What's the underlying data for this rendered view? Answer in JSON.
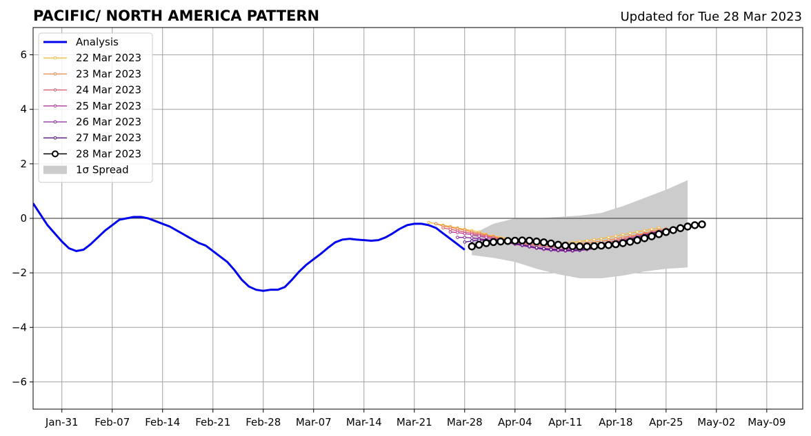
{
  "chart_data": {
    "type": "line",
    "title": "PACIFIC/ NORTH AMERICA PATTERN",
    "subtitle": "Updated for Tue 28 Mar 2023",
    "xlabel": "",
    "ylabel": "",
    "x_range": [
      "2023-01-27",
      "2023-05-14"
    ],
    "ylim": [
      -7,
      7
    ],
    "y_ticks": [
      -6,
      -4,
      -2,
      0,
      2,
      4,
      6
    ],
    "y_tick_labels": [
      "−6",
      "−4",
      "−2",
      "0",
      "2",
      "4",
      "6"
    ],
    "x_ticks": [
      "2023-01-31",
      "2023-02-07",
      "2023-02-14",
      "2023-02-21",
      "2023-02-28",
      "2023-03-07",
      "2023-03-14",
      "2023-03-21",
      "2023-03-28",
      "2023-04-04",
      "2023-04-11",
      "2023-04-18",
      "2023-04-25",
      "2023-05-02",
      "2023-05-09"
    ],
    "x_tick_labels": [
      "Jan-31",
      "Feb-07",
      "Feb-14",
      "Feb-21",
      "Feb-28",
      "Mar-07",
      "Mar-14",
      "Mar-21",
      "Mar-28",
      "Apr-04",
      "Apr-11",
      "Apr-18",
      "Apr-25",
      "May-02",
      "May-09"
    ],
    "grid": true,
    "zero_line": true,
    "legend_position": "upper-left",
    "spread": {
      "name": "1σ Spread",
      "color": "#cccccc",
      "x": [
        "2023-03-29",
        "2023-04-01",
        "2023-04-04",
        "2023-04-07",
        "2023-04-10",
        "2023-04-13",
        "2023-04-16",
        "2023-04-19",
        "2023-04-22",
        "2023-04-25",
        "2023-04-28"
      ],
      "upper": [
        -0.6,
        -0.2,
        0.0,
        0.0,
        0.05,
        0.1,
        0.2,
        0.45,
        0.75,
        1.05,
        1.4
      ],
      "lower": [
        -1.35,
        -1.45,
        -1.6,
        -1.85,
        -2.05,
        -2.2,
        -2.2,
        -2.1,
        -1.95,
        -1.85,
        -1.8
      ]
    },
    "series": [
      {
        "name": "Analysis",
        "color": "#0000ee",
        "style": "thick-line",
        "x": [
          "2023-01-27",
          "2023-01-28",
          "2023-01-29",
          "2023-01-30",
          "2023-01-31",
          "2023-02-01",
          "2023-02-02",
          "2023-02-03",
          "2023-02-04",
          "2023-02-05",
          "2023-02-06",
          "2023-02-07",
          "2023-02-08",
          "2023-02-09",
          "2023-02-10",
          "2023-02-11",
          "2023-02-12",
          "2023-02-13",
          "2023-02-14",
          "2023-02-15",
          "2023-02-16",
          "2023-02-17",
          "2023-02-18",
          "2023-02-19",
          "2023-02-20",
          "2023-02-21",
          "2023-02-22",
          "2023-02-23",
          "2023-02-24",
          "2023-02-25",
          "2023-02-26",
          "2023-02-27",
          "2023-02-28",
          "2023-03-01",
          "2023-03-02",
          "2023-03-03",
          "2023-03-04",
          "2023-03-05",
          "2023-03-06",
          "2023-03-07",
          "2023-03-08",
          "2023-03-09",
          "2023-03-10",
          "2023-03-11",
          "2023-03-12",
          "2023-03-13",
          "2023-03-14",
          "2023-03-15",
          "2023-03-16",
          "2023-03-17",
          "2023-03-18",
          "2023-03-19",
          "2023-03-20",
          "2023-03-21",
          "2023-03-22",
          "2023-03-23",
          "2023-03-24",
          "2023-03-25",
          "2023-03-26",
          "2023-03-27",
          "2023-03-28"
        ],
        "values": [
          0.55,
          0.15,
          -0.25,
          -0.55,
          -0.85,
          -1.1,
          -1.2,
          -1.15,
          -0.95,
          -0.7,
          -0.45,
          -0.25,
          -0.05,
          0.0,
          0.05,
          0.05,
          0.0,
          -0.1,
          -0.2,
          -0.3,
          -0.45,
          -0.6,
          -0.75,
          -0.9,
          -1.0,
          -1.2,
          -1.4,
          -1.6,
          -1.9,
          -2.25,
          -2.5,
          -2.62,
          -2.66,
          -2.62,
          -2.62,
          -2.52,
          -2.25,
          -1.95,
          -1.7,
          -1.5,
          -1.3,
          -1.08,
          -0.88,
          -0.78,
          -0.75,
          -0.78,
          -0.8,
          -0.82,
          -0.8,
          -0.7,
          -0.55,
          -0.38,
          -0.25,
          -0.2,
          -0.2,
          -0.25,
          -0.35,
          -0.55,
          -0.75,
          -0.95,
          -1.15
        ]
      },
      {
        "name": "22 Mar 2023",
        "color": "#f5b942",
        "style": "small-marker",
        "x": [
          "2023-03-23",
          "2023-03-24",
          "2023-03-25",
          "2023-03-26",
          "2023-03-27",
          "2023-03-28",
          "2023-03-29",
          "2023-03-30",
          "2023-03-31",
          "2023-04-01",
          "2023-04-02",
          "2023-04-03",
          "2023-04-04",
          "2023-04-05",
          "2023-04-06",
          "2023-04-07",
          "2023-04-08",
          "2023-04-09",
          "2023-04-10",
          "2023-04-11",
          "2023-04-12",
          "2023-04-13",
          "2023-04-14",
          "2023-04-15",
          "2023-04-16",
          "2023-04-17",
          "2023-04-18",
          "2023-04-19",
          "2023-04-20",
          "2023-04-21",
          "2023-04-22",
          "2023-04-23",
          "2023-04-24"
        ],
        "values": [
          -0.15,
          -0.2,
          -0.25,
          -0.3,
          -0.35,
          -0.4,
          -0.45,
          -0.5,
          -0.6,
          -0.65,
          -0.7,
          -0.75,
          -0.8,
          -0.82,
          -0.85,
          -0.88,
          -0.9,
          -0.9,
          -0.9,
          -0.9,
          -0.88,
          -0.85,
          -0.82,
          -0.78,
          -0.75,
          -0.7,
          -0.65,
          -0.6,
          -0.55,
          -0.5,
          -0.45,
          -0.4,
          -0.35
        ]
      },
      {
        "name": "23 Mar 2023",
        "color": "#ee8844",
        "style": "small-marker",
        "x": [
          "2023-03-24",
          "2023-03-25",
          "2023-03-26",
          "2023-03-27",
          "2023-03-28",
          "2023-03-29",
          "2023-03-30",
          "2023-03-31",
          "2023-04-01",
          "2023-04-02",
          "2023-04-03",
          "2023-04-04",
          "2023-04-05",
          "2023-04-06",
          "2023-04-07",
          "2023-04-08",
          "2023-04-09",
          "2023-04-10",
          "2023-04-11",
          "2023-04-12",
          "2023-04-13",
          "2023-04-14",
          "2023-04-15",
          "2023-04-16",
          "2023-04-17",
          "2023-04-18",
          "2023-04-19",
          "2023-04-20",
          "2023-04-21",
          "2023-04-22",
          "2023-04-23",
          "2023-04-24",
          "2023-04-25"
        ],
        "values": [
          -0.2,
          -0.28,
          -0.33,
          -0.38,
          -0.43,
          -0.5,
          -0.55,
          -0.62,
          -0.68,
          -0.74,
          -0.8,
          -0.84,
          -0.88,
          -0.92,
          -0.95,
          -0.97,
          -0.98,
          -0.98,
          -0.97,
          -0.95,
          -0.92,
          -0.9,
          -0.87,
          -0.84,
          -0.8,
          -0.75,
          -0.7,
          -0.65,
          -0.6,
          -0.55,
          -0.48,
          -0.42,
          -0.38
        ]
      },
      {
        "name": "24 Mar 2023",
        "color": "#dd5566",
        "style": "small-marker",
        "x": [
          "2023-03-25",
          "2023-03-26",
          "2023-03-27",
          "2023-03-28",
          "2023-03-29",
          "2023-03-30",
          "2023-03-31",
          "2023-04-01",
          "2023-04-02",
          "2023-04-03",
          "2023-04-04",
          "2023-04-05",
          "2023-04-06",
          "2023-04-07",
          "2023-04-08",
          "2023-04-09",
          "2023-04-10",
          "2023-04-11",
          "2023-04-12",
          "2023-04-13",
          "2023-04-14",
          "2023-04-15",
          "2023-04-16",
          "2023-04-17",
          "2023-04-18",
          "2023-04-19",
          "2023-04-20",
          "2023-04-21",
          "2023-04-22",
          "2023-04-23",
          "2023-04-24",
          "2023-04-25",
          "2023-04-26"
        ],
        "values": [
          -0.35,
          -0.4,
          -0.45,
          -0.5,
          -0.55,
          -0.6,
          -0.65,
          -0.7,
          -0.76,
          -0.82,
          -0.88,
          -0.93,
          -0.97,
          -1.0,
          -1.03,
          -1.05,
          -1.06,
          -1.06,
          -1.05,
          -1.03,
          -1.0,
          -0.96,
          -0.92,
          -0.87,
          -0.82,
          -0.76,
          -0.7,
          -0.64,
          -0.58,
          -0.52,
          -0.47,
          -0.42,
          -0.38
        ]
      },
      {
        "name": "25 Mar 2023",
        "color": "#bb3399",
        "style": "small-marker",
        "x": [
          "2023-03-26",
          "2023-03-27",
          "2023-03-28",
          "2023-03-29",
          "2023-03-30",
          "2023-03-31",
          "2023-04-01",
          "2023-04-02",
          "2023-04-03",
          "2023-04-04",
          "2023-04-05",
          "2023-04-06",
          "2023-04-07",
          "2023-04-08",
          "2023-04-09",
          "2023-04-10",
          "2023-04-11",
          "2023-04-12",
          "2023-04-13",
          "2023-04-14",
          "2023-04-15",
          "2023-04-16",
          "2023-04-17",
          "2023-04-18",
          "2023-04-19",
          "2023-04-20",
          "2023-04-21",
          "2023-04-22",
          "2023-04-23",
          "2023-04-24",
          "2023-04-25",
          "2023-04-26",
          "2023-04-27"
        ],
        "values": [
          -0.5,
          -0.52,
          -0.56,
          -0.6,
          -0.65,
          -0.7,
          -0.75,
          -0.8,
          -0.86,
          -0.92,
          -0.98,
          -1.03,
          -1.07,
          -1.1,
          -1.12,
          -1.13,
          -1.13,
          -1.12,
          -1.1,
          -1.07,
          -1.03,
          -0.98,
          -0.93,
          -0.87,
          -0.81,
          -0.75,
          -0.69,
          -0.63,
          -0.57,
          -0.52,
          -0.47,
          -0.43,
          -0.4
        ]
      },
      {
        "name": "26 Mar 2023",
        "color": "#882299",
        "style": "small-marker",
        "x": [
          "2023-03-27",
          "2023-03-28",
          "2023-03-29",
          "2023-03-30",
          "2023-03-31",
          "2023-04-01",
          "2023-04-02",
          "2023-04-03",
          "2023-04-04",
          "2023-04-05",
          "2023-04-06",
          "2023-04-07",
          "2023-04-08",
          "2023-04-09",
          "2023-04-10",
          "2023-04-11",
          "2023-04-12",
          "2023-04-13",
          "2023-04-14",
          "2023-04-15",
          "2023-04-16",
          "2023-04-17",
          "2023-04-18",
          "2023-04-19",
          "2023-04-20",
          "2023-04-21",
          "2023-04-22",
          "2023-04-23",
          "2023-04-24",
          "2023-04-25",
          "2023-04-26",
          "2023-04-27",
          "2023-04-28"
        ],
        "values": [
          -0.7,
          -0.7,
          -0.72,
          -0.75,
          -0.78,
          -0.82,
          -0.86,
          -0.9,
          -0.95,
          -1.0,
          -1.05,
          -1.1,
          -1.14,
          -1.17,
          -1.19,
          -1.2,
          -1.2,
          -1.18,
          -1.15,
          -1.11,
          -1.06,
          -1.0,
          -0.94,
          -0.87,
          -0.8,
          -0.73,
          -0.66,
          -0.59,
          -0.52,
          -0.46,
          -0.41,
          -0.37,
          -0.33
        ]
      },
      {
        "name": "27 Mar 2023",
        "color": "#551188",
        "style": "small-marker",
        "x": [
          "2023-03-28",
          "2023-03-29",
          "2023-03-30",
          "2023-03-31",
          "2023-04-01",
          "2023-04-02",
          "2023-04-03",
          "2023-04-04",
          "2023-04-05",
          "2023-04-06",
          "2023-04-07",
          "2023-04-08",
          "2023-04-09",
          "2023-04-10",
          "2023-04-11",
          "2023-04-12",
          "2023-04-13",
          "2023-04-14",
          "2023-04-15",
          "2023-04-16",
          "2023-04-17",
          "2023-04-18",
          "2023-04-19",
          "2023-04-20",
          "2023-04-21",
          "2023-04-22",
          "2023-04-23",
          "2023-04-24",
          "2023-04-25",
          "2023-04-26",
          "2023-04-27",
          "2023-04-28",
          "2023-04-29"
        ],
        "values": [
          -0.87,
          -0.83,
          -0.8,
          -0.8,
          -0.82,
          -0.85,
          -0.88,
          -0.92,
          -0.97,
          -1.02,
          -1.07,
          -1.11,
          -1.14,
          -1.16,
          -1.17,
          -1.17,
          -1.15,
          -1.12,
          -1.08,
          -1.03,
          -0.97,
          -0.9,
          -0.83,
          -0.76,
          -0.69,
          -0.62,
          -0.55,
          -0.48,
          -0.42,
          -0.36,
          -0.31,
          -0.27,
          -0.23
        ]
      },
      {
        "name": "28 Mar 2023",
        "color": "#000000",
        "style": "large-marker",
        "x": [
          "2023-03-29",
          "2023-03-30",
          "2023-03-31",
          "2023-04-01",
          "2023-04-02",
          "2023-04-03",
          "2023-04-04",
          "2023-04-05",
          "2023-04-06",
          "2023-04-07",
          "2023-04-08",
          "2023-04-09",
          "2023-04-10",
          "2023-04-11",
          "2023-04-12",
          "2023-04-13",
          "2023-04-14",
          "2023-04-15",
          "2023-04-16",
          "2023-04-17",
          "2023-04-18",
          "2023-04-19",
          "2023-04-20",
          "2023-04-21",
          "2023-04-22",
          "2023-04-23",
          "2023-04-24",
          "2023-04-25",
          "2023-04-26",
          "2023-04-27",
          "2023-04-28",
          "2023-04-29",
          "2023-04-30"
        ],
        "values": [
          -1.03,
          -0.97,
          -0.91,
          -0.87,
          -0.85,
          -0.83,
          -0.82,
          -0.81,
          -0.82,
          -0.85,
          -0.88,
          -0.92,
          -0.97,
          -1.0,
          -1.02,
          -1.03,
          -1.03,
          -1.02,
          -1.0,
          -0.98,
          -0.95,
          -0.91,
          -0.86,
          -0.8,
          -0.73,
          -0.66,
          -0.58,
          -0.5,
          -0.43,
          -0.36,
          -0.3,
          -0.25,
          -0.22
        ]
      }
    ]
  }
}
